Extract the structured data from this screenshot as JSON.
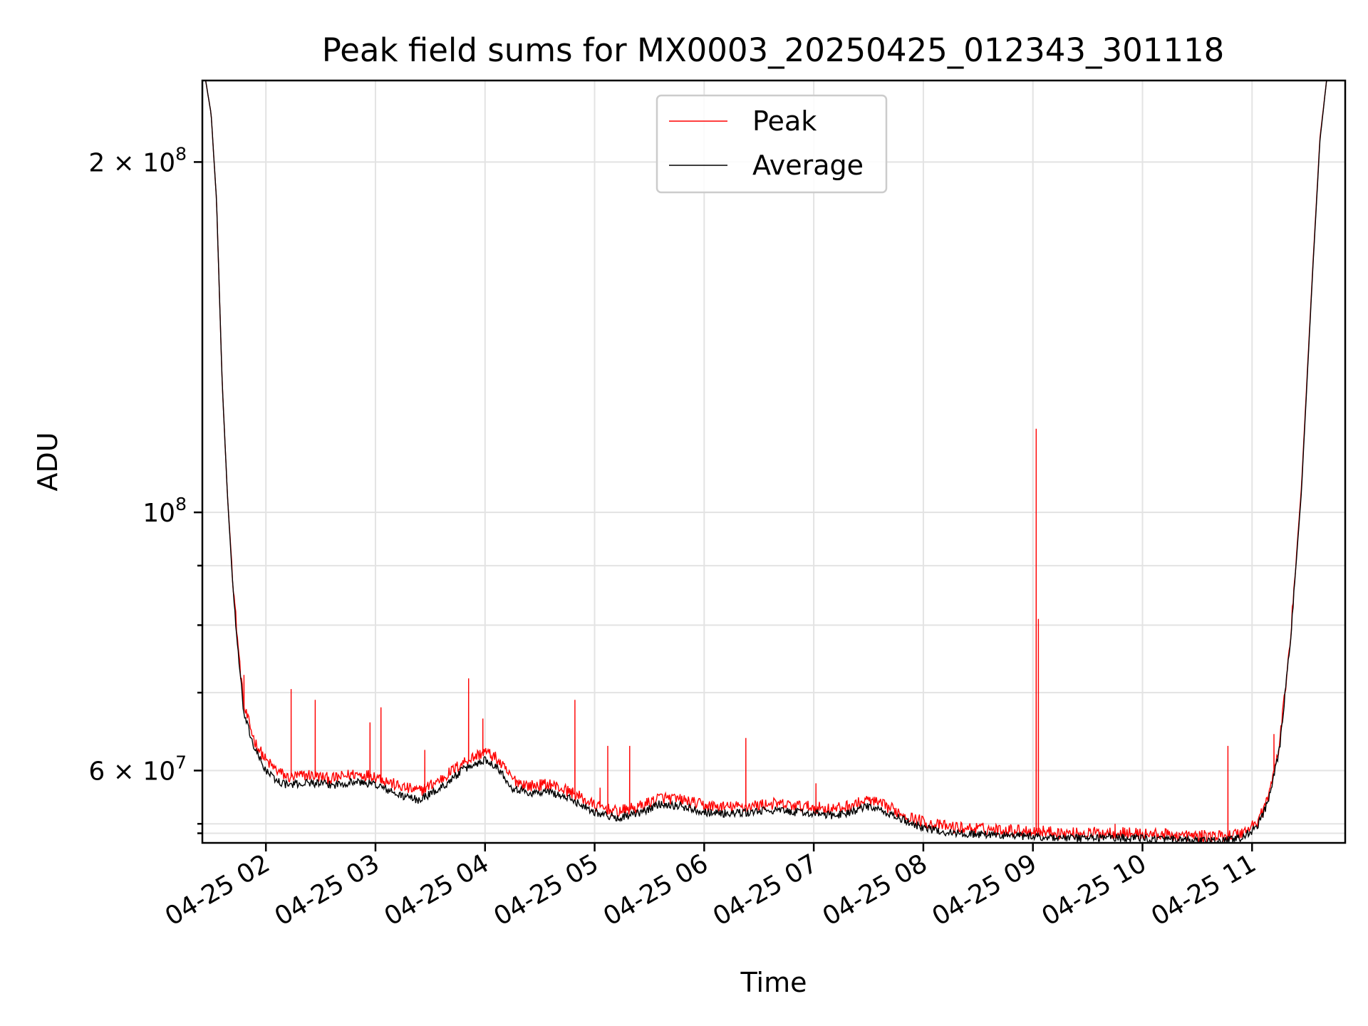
{
  "chart_data": {
    "type": "line",
    "title": "Peak field sums for MX0003_20250425_012343_301118",
    "xlabel": "Time",
    "ylabel": "ADU",
    "y_scale": "log",
    "x_unit": "hours (2025-04-25, clock time)",
    "xlim": [
      1.42,
      11.85
    ],
    "ylim": [
      52000000,
      235000000
    ],
    "x_ticks": [
      {
        "value": 2,
        "label": "04-25 02"
      },
      {
        "value": 3,
        "label": "04-25 03"
      },
      {
        "value": 4,
        "label": "04-25 04"
      },
      {
        "value": 5,
        "label": "04-25 05"
      },
      {
        "value": 6,
        "label": "04-25 06"
      },
      {
        "value": 7,
        "label": "04-25 07"
      },
      {
        "value": 8,
        "label": "04-25 08"
      },
      {
        "value": 9,
        "label": "04-25 09"
      },
      {
        "value": 10,
        "label": "04-25 10"
      },
      {
        "value": 11,
        "label": "04-25 11"
      }
    ],
    "y_major_ticks": [
      {
        "value": 60000000,
        "mantissa": "6",
        "exponent": "7"
      },
      {
        "value": 100000000,
        "mantissa": "",
        "exponent": "8"
      },
      {
        "value": 200000000,
        "mantissa": "2",
        "exponent": "8"
      }
    ],
    "y_minor_ticks": [
      53000000,
      70000000,
      80000000,
      90000000,
      54000000
    ],
    "grid": true,
    "legend": {
      "placement": "top-center"
    },
    "series": [
      {
        "name": "Peak",
        "color": "#ff0000",
        "points": [
          [
            1.45,
            235000000
          ],
          [
            1.5,
            220000000
          ],
          [
            1.55,
            185000000
          ],
          [
            1.6,
            130000000
          ],
          [
            1.65,
            103000000
          ],
          [
            1.7,
            87000000
          ],
          [
            1.75,
            76000000
          ],
          [
            1.8,
            68000000
          ],
          [
            1.9,
            63500000
          ],
          [
            2.0,
            61200000
          ],
          [
            2.1,
            60000000
          ],
          [
            2.2,
            59200000
          ],
          [
            2.4,
            59500000
          ],
          [
            2.6,
            59000000
          ],
          [
            2.8,
            59600000
          ],
          [
            3.0,
            59400000
          ],
          [
            3.2,
            58200000
          ],
          [
            3.4,
            57600000
          ],
          [
            3.6,
            59000000
          ],
          [
            3.8,
            61000000
          ],
          [
            4.0,
            62300000
          ],
          [
            4.1,
            61500000
          ],
          [
            4.25,
            59000000
          ],
          [
            4.4,
            58200000
          ],
          [
            4.6,
            58400000
          ],
          [
            4.8,
            57400000
          ],
          [
            5.0,
            56000000
          ],
          [
            5.2,
            55300000
          ],
          [
            5.4,
            55800000
          ],
          [
            5.6,
            56900000
          ],
          [
            5.8,
            56600000
          ],
          [
            6.0,
            56000000
          ],
          [
            6.2,
            55800000
          ],
          [
            6.4,
            55900000
          ],
          [
            6.6,
            56200000
          ],
          [
            6.8,
            56000000
          ],
          [
            7.0,
            55800000
          ],
          [
            7.2,
            55600000
          ],
          [
            7.4,
            56200000
          ],
          [
            7.5,
            56600000
          ],
          [
            7.7,
            55700000
          ],
          [
            7.9,
            54600000
          ],
          [
            8.1,
            53900000
          ],
          [
            8.3,
            53600000
          ],
          [
            8.5,
            53500000
          ],
          [
            8.7,
            53400000
          ],
          [
            8.9,
            53300000
          ],
          [
            9.1,
            53200000
          ],
          [
            9.3,
            53000000
          ],
          [
            9.5,
            53000000
          ],
          [
            9.7,
            53100000
          ],
          [
            9.9,
            53000000
          ],
          [
            10.1,
            52900000
          ],
          [
            10.3,
            52800000
          ],
          [
            10.5,
            52700000
          ],
          [
            10.7,
            52700000
          ],
          [
            10.9,
            53000000
          ],
          [
            11.05,
            54200000
          ],
          [
            11.15,
            57000000
          ],
          [
            11.25,
            63000000
          ],
          [
            11.35,
            78000000
          ],
          [
            11.45,
            105000000
          ],
          [
            11.55,
            160000000
          ],
          [
            11.62,
            210000000
          ],
          [
            11.68,
            235000000
          ],
          [
            11.85,
            235000000
          ]
        ],
        "spikes": [
          [
            1.8,
            72500000
          ],
          [
            2.23,
            70500000
          ],
          [
            2.45,
            69000000
          ],
          [
            2.95,
            66000000
          ],
          [
            3.05,
            68000000
          ],
          [
            3.45,
            62500000
          ],
          [
            3.85,
            72000000
          ],
          [
            3.98,
            66500000
          ],
          [
            4.82,
            69000000
          ],
          [
            5.05,
            58000000
          ],
          [
            5.12,
            63000000
          ],
          [
            5.32,
            63000000
          ],
          [
            6.38,
            64000000
          ],
          [
            7.02,
            58500000
          ],
          [
            9.03,
            118000000
          ],
          [
            9.05,
            81000000
          ],
          [
            9.75,
            54000000
          ],
          [
            10.78,
            63000000
          ],
          [
            11.2,
            64500000
          ]
        ]
      },
      {
        "name": "Average",
        "color": "#000000",
        "points": [
          [
            1.45,
            235000000
          ],
          [
            1.5,
            220000000
          ],
          [
            1.55,
            185000000
          ],
          [
            1.6,
            130000000
          ],
          [
            1.65,
            103000000
          ],
          [
            1.7,
            86000000
          ],
          [
            1.75,
            75000000
          ],
          [
            1.8,
            67000000
          ],
          [
            1.9,
            62500000
          ],
          [
            2.0,
            60000000
          ],
          [
            2.1,
            58800000
          ],
          [
            2.2,
            58300000
          ],
          [
            2.4,
            58600000
          ],
          [
            2.6,
            58300000
          ],
          [
            2.8,
            58700000
          ],
          [
            3.0,
            58400000
          ],
          [
            3.2,
            57200000
          ],
          [
            3.4,
            56600000
          ],
          [
            3.6,
            58000000
          ],
          [
            3.8,
            60100000
          ],
          [
            4.0,
            61300000
          ],
          [
            4.1,
            60600000
          ],
          [
            4.25,
            58000000
          ],
          [
            4.4,
            57400000
          ],
          [
            4.6,
            57500000
          ],
          [
            4.8,
            56600000
          ],
          [
            5.0,
            55300000
          ],
          [
            5.2,
            54600000
          ],
          [
            5.4,
            55100000
          ],
          [
            5.6,
            56200000
          ],
          [
            5.8,
            55900000
          ],
          [
            6.0,
            55300000
          ],
          [
            6.2,
            55100000
          ],
          [
            6.4,
            55200000
          ],
          [
            6.6,
            55500000
          ],
          [
            6.8,
            55300000
          ],
          [
            7.0,
            55100000
          ],
          [
            7.2,
            54900000
          ],
          [
            7.4,
            55500000
          ],
          [
            7.5,
            55900000
          ],
          [
            7.7,
            55000000
          ],
          [
            7.9,
            54000000
          ],
          [
            8.1,
            53300000
          ],
          [
            8.3,
            53000000
          ],
          [
            8.5,
            52900000
          ],
          [
            8.7,
            52800000
          ],
          [
            8.9,
            52700000
          ],
          [
            9.1,
            52600000
          ],
          [
            9.3,
            52500000
          ],
          [
            9.5,
            52500000
          ],
          [
            9.7,
            52600000
          ],
          [
            9.9,
            52500000
          ],
          [
            10.1,
            52400000
          ],
          [
            10.3,
            52300000
          ],
          [
            10.5,
            52200000
          ],
          [
            10.7,
            52200000
          ],
          [
            10.9,
            52500000
          ],
          [
            11.05,
            53700000
          ],
          [
            11.15,
            56500000
          ],
          [
            11.25,
            62500000
          ],
          [
            11.35,
            77500000
          ],
          [
            11.45,
            104000000
          ],
          [
            11.55,
            159000000
          ],
          [
            11.62,
            209000000
          ],
          [
            11.68,
            235000000
          ],
          [
            11.85,
            235000000
          ]
        ],
        "spikes": []
      }
    ]
  }
}
